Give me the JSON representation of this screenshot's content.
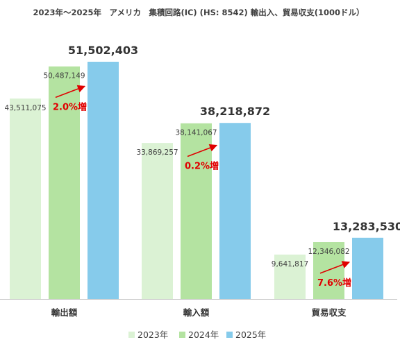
{
  "chart_data": {
    "type": "bar",
    "title": "2023年～2025年　アメリカ　集積回路(IC) (HS: 8542) 輸出入、貿易収支(1000ドル）",
    "categories": [
      "輸出額",
      "輸入額",
      "貿易収支"
    ],
    "series": [
      {
        "name": "2023年",
        "color": "#dbf2d4",
        "values": [
          43511075,
          33869257,
          9641817
        ],
        "labels": [
          "43,511,075",
          "33,869,257",
          "9,641,817"
        ]
      },
      {
        "name": "2024年",
        "color": "#b4e3a1",
        "values": [
          50487149,
          38141067,
          12346082
        ],
        "labels": [
          "50,487,149",
          "38,141,067",
          "12,346,082"
        ]
      },
      {
        "name": "2025年",
        "color": "#86cbeb",
        "values": [
          51502403,
          38218872,
          13283530
        ],
        "labels": [
          "51,502,403",
          "38,218,872",
          "13,283,530"
        ]
      }
    ],
    "annotations": [
      "2.0%増",
      "0.2%増",
      "7.6%増"
    ],
    "ylim": [
      0,
      60000000
    ],
    "grid": false,
    "legend": "bottom"
  }
}
